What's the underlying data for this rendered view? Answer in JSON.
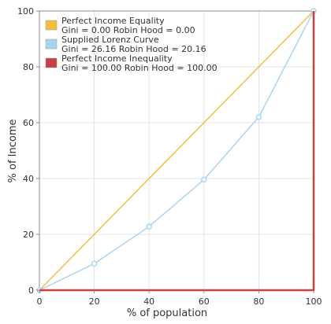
{
  "chart_data": {
    "type": "line",
    "xlabel": "% of population",
    "ylabel": "% of Income",
    "xlim": [
      0,
      100
    ],
    "ylim": [
      0,
      100
    ],
    "xticks": [
      0,
      20,
      40,
      60,
      80,
      100
    ],
    "yticks": [
      0,
      20,
      40,
      60,
      80,
      100
    ],
    "grid": true,
    "legend_position": "top-left",
    "series": [
      {
        "name": "Perfect Income Equality",
        "stats": "Gini = 0.00 Robin Hood = 0.00",
        "color": "#f0c040",
        "x": [
          0,
          100
        ],
        "y": [
          0,
          100
        ],
        "markers": false
      },
      {
        "name": "Supplied Lorenz Curve",
        "stats": "Gini = 26.16 Robin Hood = 20.16",
        "color": "#a8d4f0",
        "x": [
          0,
          20,
          40,
          60,
          80,
          100
        ],
        "y": [
          0,
          9.5,
          22.8,
          39.6,
          62.0,
          100
        ],
        "markers": true
      },
      {
        "name": "Perfect Income Inequality",
        "stats": "Gini = 100.00 Robin Hood = 100.00",
        "color": "#c94040",
        "x": [
          0,
          100,
          100
        ],
        "y": [
          0,
          0,
          100
        ],
        "markers": false
      }
    ]
  }
}
